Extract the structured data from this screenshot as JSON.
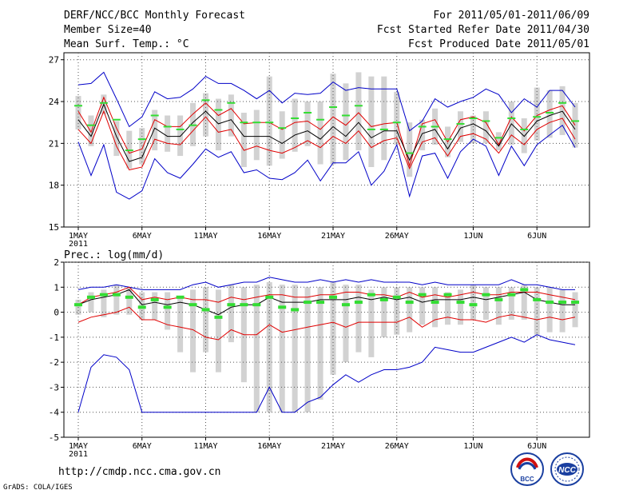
{
  "header": {
    "title": "DERF/NCC/BCC Monthly Forecast",
    "member_size": "Member Size=40",
    "variable": "Mean Surf. Temp.: °C",
    "period": "For 2011/05/01-2011/06/09",
    "fcst_started": "Fcst Started Refer Date 2011/04/30",
    "fcst_produced": "Fcst Produced Date 2011/05/01"
  },
  "footer": {
    "url": "http://cmdp.ncc.cma.gov.cn",
    "credit": "GrADS: COLA/IGES",
    "logo_bcc": "BCC",
    "logo_ncc": "NCC"
  },
  "chart_data": [
    {
      "type": "line",
      "panel": "temperature",
      "ylabel": "Mean Surf. Temp.: °C",
      "ylim": [
        15,
        27.5
      ],
      "yticks": [
        15,
        18,
        21,
        24,
        27
      ],
      "xticks": [
        {
          "day": 1,
          "label": "1MAY",
          "sub": "2011"
        },
        {
          "day": 6,
          "label": "6MAY"
        },
        {
          "day": 11,
          "label": "11MAY"
        },
        {
          "day": 16,
          "label": "16MAY"
        },
        {
          "day": 21,
          "label": "21MAY"
        },
        {
          "day": 26,
          "label": "26MAY"
        },
        {
          "day": 32,
          "label": "1JUN"
        },
        {
          "day": 37,
          "label": "6JUN"
        }
      ],
      "colors": {
        "envelope": "#0000c8",
        "spread": "#e00000",
        "mean": "#000000",
        "obs": "#33dd33",
        "box": "#d2d2d2"
      },
      "series": [
        {
          "name": "max",
          "values": [
            25.2,
            25.3,
            26.1,
            24.2,
            22.2,
            22.9,
            24.7,
            24.2,
            24.3,
            24.9,
            25.8,
            25.3,
            25.3,
            24.8,
            24.2,
            24.8,
            23.9,
            24.6,
            24.5,
            24.6,
            25.4,
            24.8,
            25.0,
            24.9,
            24.9,
            24.9,
            21.9,
            22.6,
            24.2,
            23.6,
            24.0,
            24.3,
            24.9,
            24.5,
            23.2,
            24.2,
            23.6,
            24.8,
            24.8,
            23.6
          ]
        },
        {
          "name": "upper",
          "values": [
            23.3,
            21.8,
            24.3,
            22.1,
            20.3,
            20.6,
            22.7,
            22.2,
            22.2,
            23.1,
            23.9,
            23.0,
            23.5,
            22.4,
            22.5,
            22.5,
            22.0,
            22.5,
            22.6,
            22.0,
            22.9,
            22.3,
            23.2,
            22.2,
            22.4,
            22.5,
            19.4,
            22.4,
            22.7,
            21.1,
            22.7,
            22.9,
            22.5,
            20.9,
            22.9,
            21.9,
            23.0,
            23.4,
            23.7,
            22.3
          ]
        },
        {
          "name": "mean",
          "values": [
            22.7,
            21.5,
            23.8,
            21.5,
            19.7,
            20.0,
            22.1,
            21.5,
            21.5,
            22.5,
            23.3,
            22.4,
            22.7,
            21.5,
            21.5,
            21.5,
            21.0,
            21.6,
            21.9,
            21.3,
            22.2,
            21.5,
            22.5,
            21.4,
            21.9,
            21.9,
            19.8,
            21.7,
            22.0,
            20.6,
            22.1,
            22.4,
            21.9,
            20.8,
            22.4,
            21.5,
            22.6,
            23.0,
            23.3,
            22.0
          ]
        },
        {
          "name": "lower",
          "values": [
            22.0,
            21.0,
            23.3,
            20.8,
            19.1,
            19.3,
            21.3,
            21.0,
            20.9,
            21.9,
            22.9,
            21.8,
            22.0,
            20.5,
            20.8,
            20.5,
            20.3,
            20.7,
            21.2,
            20.7,
            21.5,
            21.0,
            21.9,
            20.7,
            21.2,
            21.4,
            19.2,
            21.1,
            21.4,
            20.1,
            21.5,
            21.7,
            21.3,
            20.3,
            21.6,
            20.9,
            22.0,
            22.5,
            22.8,
            21.3
          ]
        },
        {
          "name": "min",
          "values": [
            21.1,
            18.7,
            20.9,
            17.5,
            17.0,
            17.6,
            19.9,
            18.9,
            18.5,
            19.5,
            20.6,
            20.0,
            20.4,
            18.9,
            19.1,
            18.5,
            18.4,
            18.9,
            19.8,
            18.3,
            19.6,
            19.6,
            20.4,
            18.0,
            19.0,
            20.9,
            17.2,
            20.1,
            20.3,
            18.5,
            20.4,
            21.3,
            20.8,
            18.7,
            20.8,
            19.4,
            20.9,
            21.6,
            22.3,
            20.7
          ]
        },
        {
          "name": "obs",
          "values": [
            23.7,
            22.3,
            23.9,
            22.7,
            20.5,
            21.3,
            23.0,
            22.2,
            22.0,
            22.3,
            24.1,
            23.4,
            23.9,
            22.5,
            22.5,
            22.5,
            22.1,
            22.8,
            23.2,
            22.7,
            23.6,
            23.0,
            23.7,
            22.0,
            22.0,
            22.5,
            20.3,
            22.2,
            22.2,
            21.3,
            22.4,
            22.8,
            22.6,
            21.4,
            22.8,
            22.0,
            22.9,
            23.2,
            23.9,
            22.6
          ]
        }
      ],
      "boxes": {
        "hi": [
          24.4,
          23.0,
          24.5,
          22.6,
          21.9,
          22.1,
          23.4,
          23.0,
          23.0,
          23.9,
          24.6,
          24.2,
          24.5,
          23.2,
          23.4,
          25.8,
          23.3,
          24.2,
          24.0,
          24.0,
          26.0,
          25.3,
          26.1,
          25.8,
          25.8,
          24.7,
          22.5,
          22.7,
          23.5,
          22.2,
          23.3,
          23.0,
          23.3,
          21.8,
          24.0,
          22.8,
          25.0,
          24.8,
          25.1,
          23.9
        ],
        "lo": [
          22.0,
          20.8,
          23.1,
          20.1,
          19.2,
          19.5,
          20.5,
          20.4,
          20.1,
          20.8,
          21.5,
          20.5,
          21.5,
          19.3,
          19.8,
          19.4,
          19.9,
          20.4,
          20.8,
          19.5,
          19.5,
          19.8,
          20.5,
          19.3,
          19.8,
          20.9,
          18.6,
          20.5,
          20.9,
          20.0,
          21.1,
          21.0,
          21.0,
          20.5,
          20.9,
          20.3,
          21.2,
          21.4,
          21.6,
          20.7
        ]
      }
    },
    {
      "type": "line",
      "panel": "precipitation",
      "ylabel": "Prec.: log(mm/d)",
      "ylim": [
        -5,
        2
      ],
      "yticks": [
        -5,
        -4,
        -3,
        -2,
        -1,
        0,
        1,
        2
      ],
      "xticks": [
        {
          "day": 1,
          "label": "1MAY",
          "sub": "2011"
        },
        {
          "day": 6,
          "label": "6MAY"
        },
        {
          "day": 11,
          "label": "11MAY"
        },
        {
          "day": 16,
          "label": "16MAY"
        },
        {
          "day": 21,
          "label": "21MAY"
        },
        {
          "day": 26,
          "label": "26MAY"
        },
        {
          "day": 32,
          "label": "1JUN"
        },
        {
          "day": 37,
          "label": "6JUN"
        }
      ],
      "colors": {
        "envelope": "#0000c8",
        "spread": "#e00000",
        "mean": "#000000",
        "obs": "#33dd33",
        "box": "#d2d2d2"
      },
      "series": [
        {
          "name": "max",
          "values": [
            0.9,
            1.0,
            1.0,
            1.1,
            1.0,
            0.9,
            0.9,
            0.9,
            0.9,
            1.1,
            1.2,
            1.0,
            1.1,
            1.2,
            1.2,
            1.4,
            1.3,
            1.2,
            1.2,
            1.3,
            1.2,
            1.3,
            1.2,
            1.3,
            1.2,
            1.2,
            1.2,
            1.1,
            1.2,
            1.1,
            1.1,
            1.1,
            1.1,
            1.1,
            1.3,
            1.1,
            1.1,
            1.0,
            0.9,
            0.9
          ]
        },
        {
          "name": "upper",
          "values": [
            0.3,
            0.6,
            0.7,
            0.8,
            1.0,
            0.5,
            0.6,
            0.5,
            0.6,
            0.5,
            0.5,
            0.4,
            0.6,
            0.5,
            0.6,
            0.7,
            0.7,
            0.6,
            0.6,
            0.7,
            0.7,
            0.8,
            0.8,
            0.7,
            0.7,
            0.6,
            0.8,
            0.6,
            0.7,
            0.6,
            0.7,
            0.8,
            0.7,
            0.7,
            0.8,
            0.8,
            0.8,
            0.7,
            0.6,
            0.5
          ]
        },
        {
          "name": "mean",
          "values": [
            0.3,
            0.5,
            0.6,
            0.7,
            0.9,
            0.3,
            0.4,
            0.3,
            0.4,
            0.3,
            0.1,
            -0.1,
            0.2,
            0.3,
            0.3,
            0.6,
            0.4,
            0.4,
            0.4,
            0.5,
            0.5,
            0.5,
            0.6,
            0.5,
            0.6,
            0.5,
            0.6,
            0.4,
            0.5,
            0.5,
            0.5,
            0.6,
            0.5,
            0.6,
            0.7,
            0.8,
            0.5,
            0.4,
            0.3,
            0.3
          ]
        },
        {
          "name": "lower",
          "values": [
            -0.4,
            -0.2,
            -0.1,
            0.0,
            0.2,
            -0.3,
            -0.3,
            -0.5,
            -0.6,
            -0.7,
            -1.0,
            -1.1,
            -0.7,
            -0.9,
            -0.9,
            -0.5,
            -0.8,
            -0.7,
            -0.6,
            -0.5,
            -0.4,
            -0.6,
            -0.4,
            -0.4,
            -0.4,
            -0.4,
            -0.2,
            -0.6,
            -0.3,
            -0.2,
            -0.3,
            -0.3,
            -0.4,
            -0.2,
            -0.1,
            -0.2,
            -0.3,
            -0.2,
            -0.3,
            -0.2
          ]
        },
        {
          "name": "min",
          "values": [
            -4.0,
            -2.2,
            -1.7,
            -1.8,
            -2.3,
            -4.0,
            -4.0,
            -4.0,
            -4.0,
            -4.0,
            -4.0,
            -4.0,
            -4.0,
            -4.0,
            -4.0,
            -3.0,
            -4.0,
            -4.0,
            -3.6,
            -3.4,
            -2.9,
            -2.5,
            -2.8,
            -2.5,
            -2.3,
            -2.3,
            -2.2,
            -2.0,
            -1.4,
            -1.5,
            -1.6,
            -1.6,
            -1.4,
            -1.2,
            -1.0,
            -1.2,
            -0.9,
            -1.1,
            -1.2,
            -1.3
          ]
        },
        {
          "name": "obs",
          "values": [
            0.3,
            0.6,
            0.7,
            0.7,
            0.6,
            0.2,
            0.5,
            0.2,
            0.6,
            0.3,
            0.1,
            -0.2,
            0.3,
            0.3,
            0.3,
            0.6,
            0.2,
            0.1,
            0.4,
            0.4,
            0.6,
            0.3,
            0.4,
            0.7,
            0.5,
            0.6,
            0.4,
            0.7,
            0.4,
            0.7,
            0.4,
            0.3,
            0.7,
            0.5,
            0.7,
            0.9,
            0.5,
            0.4,
            0.4,
            0.4
          ]
        }
      ],
      "boxes": {
        "hi": [
          0.5,
          0.8,
          0.9,
          1.1,
          1.0,
          0.8,
          0.8,
          0.8,
          0.6,
          0.9,
          1.0,
          0.9,
          1.1,
          1.0,
          1.1,
          1.2,
          1.1,
          1.1,
          1.0,
          1.0,
          1.2,
          1.1,
          1.1,
          0.9,
          1.0,
          1.0,
          1.0,
          1.0,
          1.0,
          0.8,
          0.9,
          1.1,
          1.0,
          1.0,
          1.0,
          1.1,
          1.0,
          1.0,
          0.9,
          0.8
        ],
        "lo": [
          -0.1,
          0.0,
          -0.2,
          -0.1,
          -0.1,
          -0.3,
          -0.3,
          -0.7,
          -1.6,
          -2.4,
          -1.6,
          -2.4,
          -1.2,
          -2.8,
          -4.0,
          -4.0,
          -4.0,
          -4.0,
          -4.0,
          -3.5,
          -2.5,
          -2.0,
          -1.6,
          -1.8,
          -1.0,
          -0.9,
          -0.8,
          -0.5,
          -0.6,
          -0.5,
          -0.5,
          -0.3,
          -0.3,
          -0.5,
          -0.3,
          -0.3,
          -0.9,
          -0.8,
          -0.8,
          -0.6
        ]
      }
    }
  ]
}
